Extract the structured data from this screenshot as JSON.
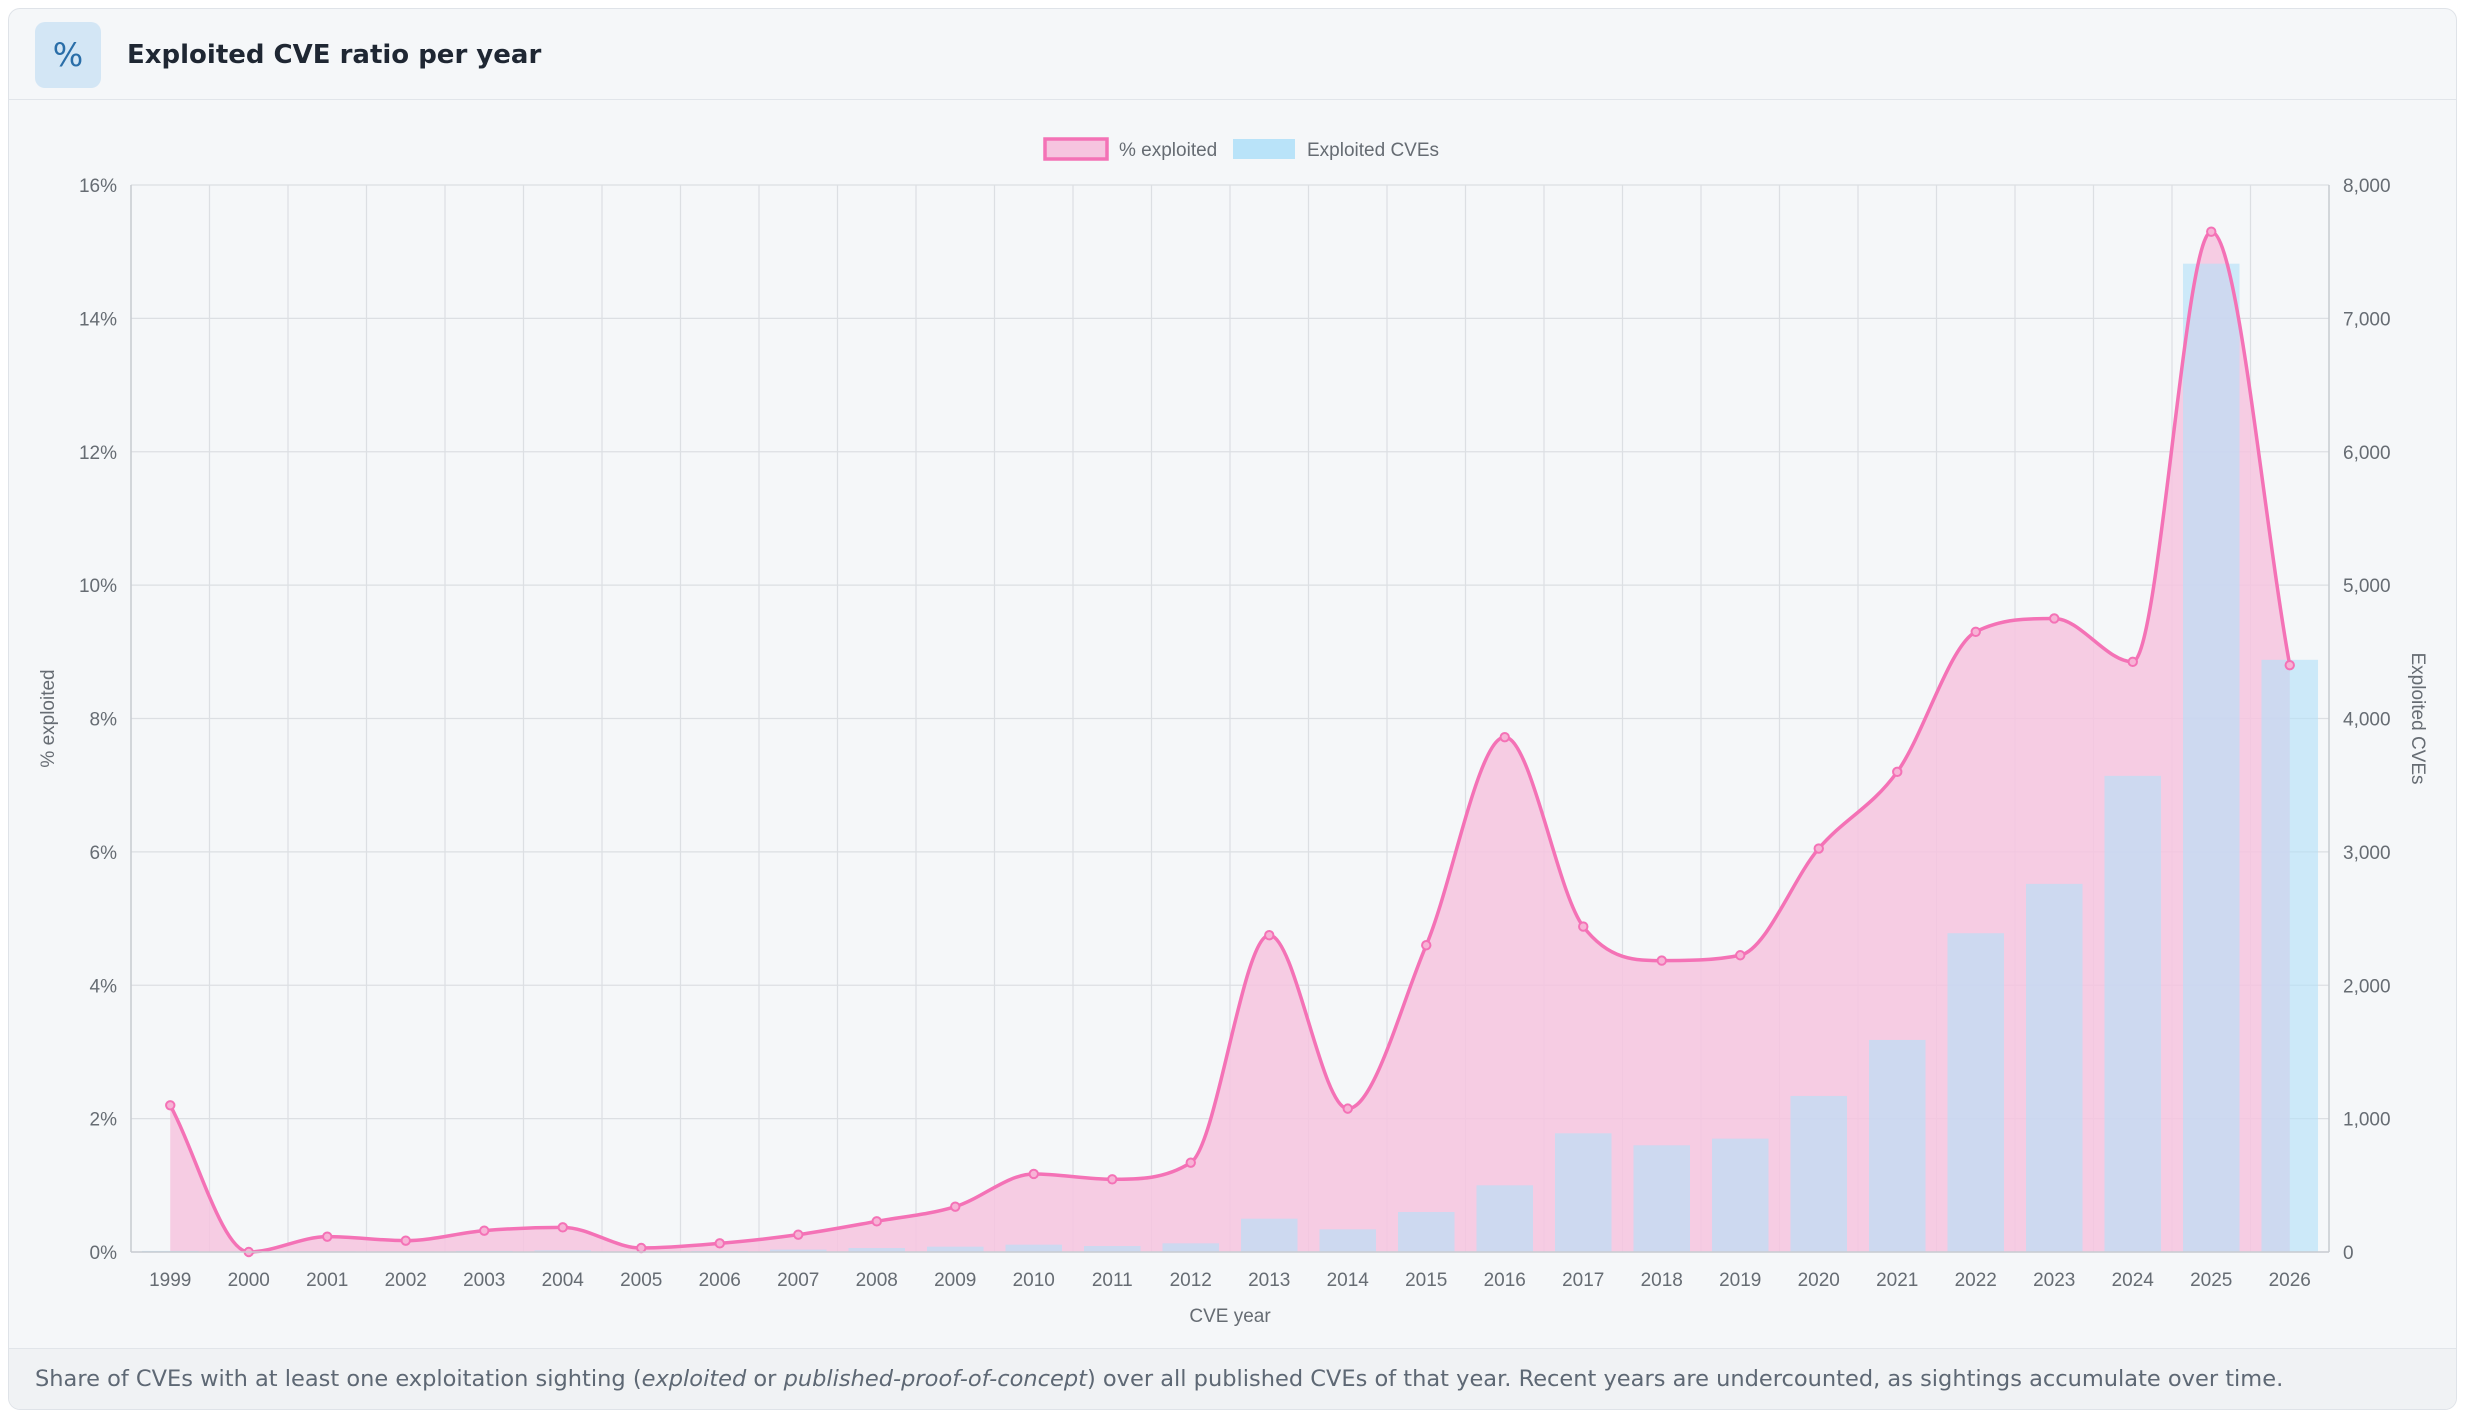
{
  "header": {
    "icon": "percent-icon",
    "icon_glyph": "%",
    "title": "Exploited CVE ratio per year"
  },
  "footer": {
    "part1": "Share of CVEs with at least one exploitation sighting (",
    "em1": "exploited",
    "part2": " or ",
    "em2": "published-proof-of-concept",
    "part3": ") over all published CVEs of that year. Recent years are undercounted, as sightings accumulate over time."
  },
  "chart_data": {
    "type": "bar+line",
    "categories": [
      "1999",
      "2000",
      "2001",
      "2002",
      "2003",
      "2004",
      "2005",
      "2006",
      "2007",
      "2008",
      "2009",
      "2010",
      "2011",
      "2012",
      "2013",
      "2014",
      "2015",
      "2016",
      "2017",
      "2018",
      "2019",
      "2020",
      "2021",
      "2022",
      "2023",
      "2024",
      "2025",
      "2026"
    ],
    "series": [
      {
        "name": "% exploited",
        "kind": "line",
        "axis": "left",
        "color": "#f472b6",
        "fill": "#f6c4df",
        "values": [
          2.2,
          0.0,
          0.23,
          0.17,
          0.32,
          0.37,
          0.06,
          0.13,
          0.26,
          0.46,
          0.68,
          1.17,
          1.09,
          1.34,
          4.75,
          2.15,
          4.6,
          7.72,
          4.88,
          4.37,
          4.45,
          6.05,
          7.2,
          9.3,
          9.5,
          8.85,
          15.3,
          8.8
        ]
      },
      {
        "name": "Exploited CVEs",
        "kind": "bar",
        "axis": "right",
        "color": "#b3e0f8",
        "values": [
          8,
          0,
          5,
          4,
          8,
          12,
          3,
          8,
          18,
          30,
          40,
          55,
          45,
          65,
          250,
          170,
          300,
          500,
          890,
          800,
          850,
          1170,
          1590,
          2390,
          2760,
          3570,
          7410,
          4440
        ]
      }
    ],
    "xlabel": "CVE year",
    "ylabel_left": "% exploited",
    "ylabel_right": "Exploited CVEs",
    "ylim_left": [
      0,
      16
    ],
    "ylim_right": [
      0,
      8000
    ],
    "yticks_left": [
      "0%",
      "2%",
      "4%",
      "6%",
      "8%",
      "10%",
      "12%",
      "14%",
      "16%"
    ],
    "yticks_right": [
      "0",
      "1,000",
      "2,000",
      "3,000",
      "4,000",
      "5,000",
      "6,000",
      "7,000",
      "8,000"
    ],
    "legend": {
      "placement": "top-center",
      "items": [
        "% exploited",
        "Exploited CVEs"
      ]
    },
    "grid": true
  }
}
